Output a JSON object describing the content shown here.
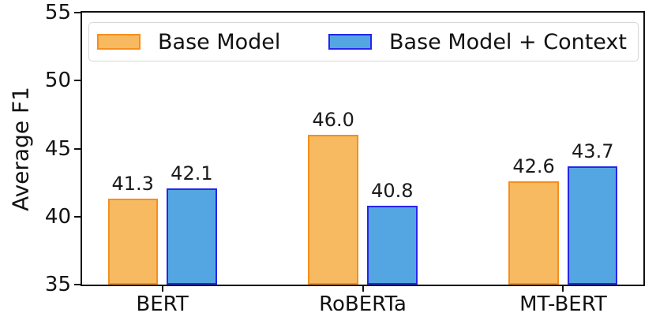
{
  "chart_data": {
    "type": "bar",
    "ylabel": "Average F1",
    "categories": [
      "BERT",
      "RoBERTa",
      "MT-BERT"
    ],
    "series": [
      {
        "name": "Base Model",
        "values": [
          41.3,
          46.0,
          42.6
        ],
        "fill_color": "#F7BA61",
        "edge_color": "#F78E1B"
      },
      {
        "name": "Base Model + Context",
        "values": [
          42.1,
          40.8,
          43.7
        ],
        "fill_color": "#54A6E2",
        "edge_color": "#2525EB"
      }
    ],
    "ylim": [
      35,
      55
    ],
    "yticks": [
      35,
      40,
      45,
      50,
      55
    ],
    "xlim": [
      -0.4,
      2.4
    ],
    "bar_width_data_units": 0.25,
    "bar_gap_data_units": 0.044,
    "grid": false,
    "legend_position": "upper inside, expanded full width",
    "axis_color": "#111111",
    "legend_border_color": "#d6d6d6",
    "value_label_decimals": 1
  }
}
